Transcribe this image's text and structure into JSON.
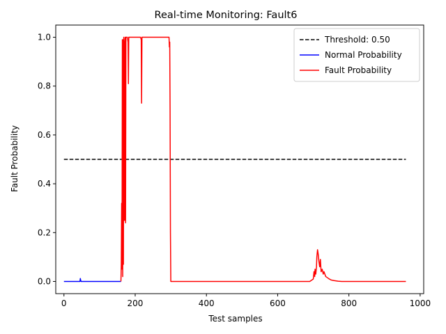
{
  "chart_data": {
    "type": "line",
    "title": "Real-time Monitoring: Fault6",
    "xlabel": "Test samples",
    "ylabel": "Fault Probability",
    "xlim": [
      -23,
      1010
    ],
    "ylim": [
      -0.05,
      1.05
    ],
    "xticks": [
      0,
      200,
      400,
      600,
      800,
      1000
    ],
    "yticks": [
      0.0,
      0.2,
      0.4,
      0.6,
      0.8,
      1.0
    ],
    "legend_position": "top-right",
    "grid": false,
    "series": [
      {
        "name": "Threshold: 0.50",
        "color": "#000000",
        "dash": true,
        "x": [
          0,
          960
        ],
        "y": [
          0.5,
          0.5
        ]
      },
      {
        "name": "Normal Probability",
        "color": "#0000ff",
        "dash": false,
        "x": [
          0,
          45,
          46,
          47,
          48,
          49,
          160
        ],
        "y": [
          0.0,
          0.0,
          0.012,
          0.005,
          0.0,
          0.0,
          0.0
        ]
      },
      {
        "name": "Fault Probability",
        "color": "#ff0000",
        "dash": false,
        "x": [
          160,
          161,
          162,
          163,
          164,
          165,
          166,
          167,
          168,
          169,
          170,
          171,
          172,
          173,
          174,
          175,
          178,
          180,
          181,
          182,
          184,
          200,
          215,
          217,
          218,
          219,
          221,
          240,
          295,
          296,
          297,
          298,
          299,
          300,
          302,
          400,
          600,
          690,
          700,
          702,
          704,
          705,
          707,
          709,
          710,
          712,
          714,
          716,
          718,
          720,
          722,
          725,
          728,
          730,
          735,
          740,
          745,
          750,
          760,
          770,
          780,
          800,
          960
        ],
        "y": [
          0.0,
          0.07,
          0.32,
          0.05,
          0.99,
          0.02,
          0.99,
          0.07,
          1.0,
          0.9,
          0.25,
          0.98,
          1.0,
          0.24,
          1.0,
          1.0,
          1.0,
          0.98,
          0.81,
          1.0,
          1.0,
          1.0,
          1.0,
          0.99,
          0.73,
          1.0,
          1.0,
          1.0,
          1.0,
          0.96,
          0.98,
          0.7,
          0.2,
          0.0,
          0.0,
          0.0,
          0.0,
          0.0,
          0.01,
          0.04,
          0.02,
          0.05,
          0.03,
          0.06,
          0.1,
          0.13,
          0.11,
          0.08,
          0.06,
          0.09,
          0.04,
          0.05,
          0.03,
          0.04,
          0.02,
          0.015,
          0.01,
          0.006,
          0.003,
          0.001,
          0.0,
          0.0,
          0.0
        ]
      }
    ]
  }
}
